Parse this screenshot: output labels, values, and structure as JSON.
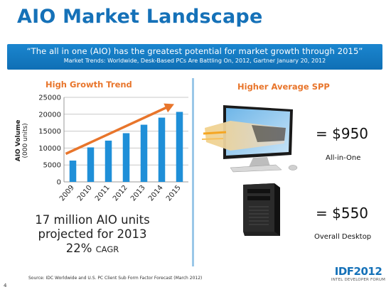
{
  "slide": {
    "title": "AIO Market Landscape",
    "quote": "“The all in one (AIO) has the greatest potential for market growth through 2015”",
    "quote_source": "Market Trends: Worldwide, Desk-Based PCs Are Battling On, 2012, Gartner January 20, 2012",
    "left_header": "High Growth Trend",
    "right_header": "Higher  Average SPP",
    "big_line1": "17 million AIO units",
    "big_line2": "projected for 2013",
    "cagr_value": "22%",
    "cagr_label": "CAGR",
    "aio_price": "= $950",
    "aio_label": "All-in-One",
    "desktop_price": "= $550",
    "desktop_label": "Overall Desktop",
    "source": "Source: IDC Worldwide and U.S. PC Client Sub Form Factor  Forecast (March 2012)",
    "page_number": "4",
    "logo_main": "IDF2012",
    "logo_sub": "INTEL DEVELOPER FORUM"
  },
  "colors": {
    "title_blue": "#1571b8",
    "header_orange": "#e8752b",
    "bar_blue": "#1f8fd8",
    "arrow_orange": "#e8752b"
  },
  "icons": {
    "aio": "all-in-one-computer-icon",
    "desktop": "desktop-tower-icon"
  },
  "chart_data": {
    "type": "bar",
    "categories": [
      "2009",
      "2010",
      "2011",
      "2012",
      "2013",
      "2014",
      "2015"
    ],
    "values": [
      6300,
      10200,
      12200,
      14400,
      16900,
      19000,
      20700
    ],
    "ylabel": "AIO Volume",
    "ylabel_unit": "(000 units)",
    "ylim": [
      0,
      25000
    ],
    "yticks": [
      0,
      5000,
      10000,
      15000,
      20000,
      25000
    ],
    "grid": true,
    "trend_arrow": true
  }
}
